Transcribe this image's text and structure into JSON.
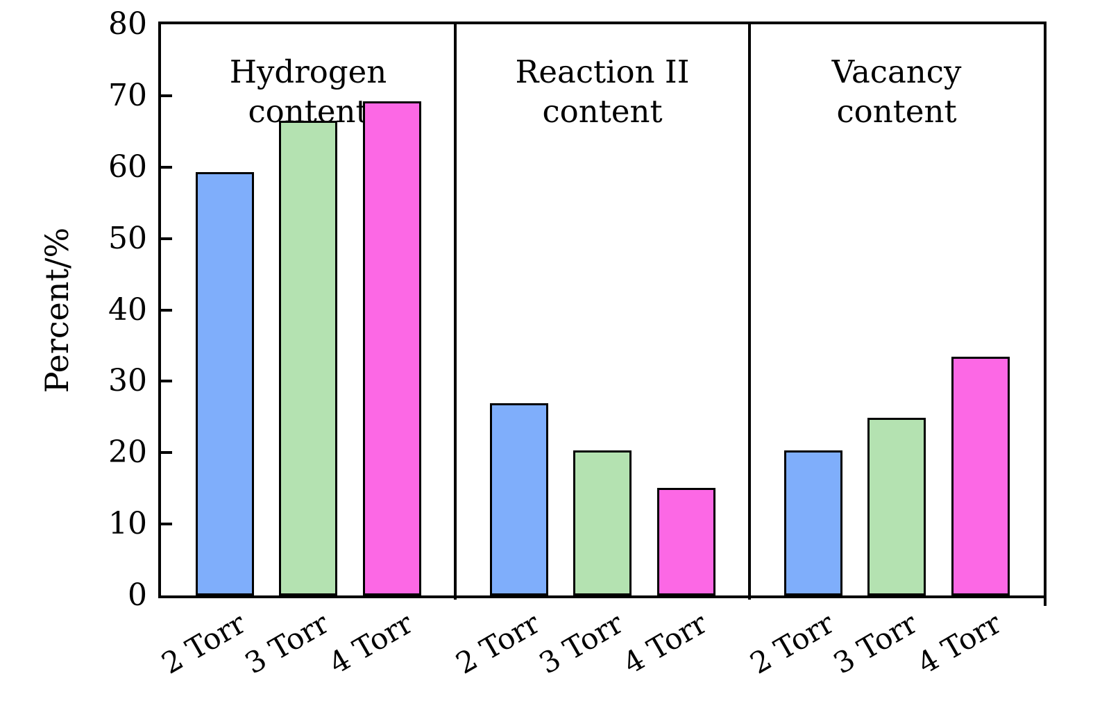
{
  "chart_data": {
    "type": "bar",
    "title": "",
    "ylabel": "Percent/%",
    "ylim": [
      0,
      80
    ],
    "ytick_step": 10,
    "ytick_labels": [
      "0",
      "10",
      "20",
      "30",
      "40",
      "50",
      "60",
      "70",
      "80"
    ],
    "grid": false,
    "legend": "none",
    "categories": [
      "2 Torr",
      "3 Torr",
      "4 Torr"
    ],
    "bar_colors": [
      "#7FAEFB",
      "#B4E2B1",
      "#FC68E5"
    ],
    "bar_edge_color": "#000000",
    "axis_color": "#000000",
    "panels": [
      {
        "title_lines": [
          "Hydrogen",
          "content"
        ],
        "categories": [
          "2 Torr",
          "3 Torr",
          "4 Torr"
        ],
        "values": [
          59.3,
          66.5,
          69.2
        ]
      },
      {
        "title_lines": [
          "Reaction II",
          "content"
        ],
        "categories": [
          "2 Torr",
          "3 Torr",
          "4 Torr"
        ],
        "values": [
          26.9,
          20.3,
          15.1
        ]
      },
      {
        "title_lines": [
          "Vacancy",
          "content"
        ],
        "categories": [
          "2 Torr",
          "3 Torr",
          "4 Torr"
        ],
        "values": [
          20.3,
          24.9,
          33.4
        ]
      }
    ]
  }
}
